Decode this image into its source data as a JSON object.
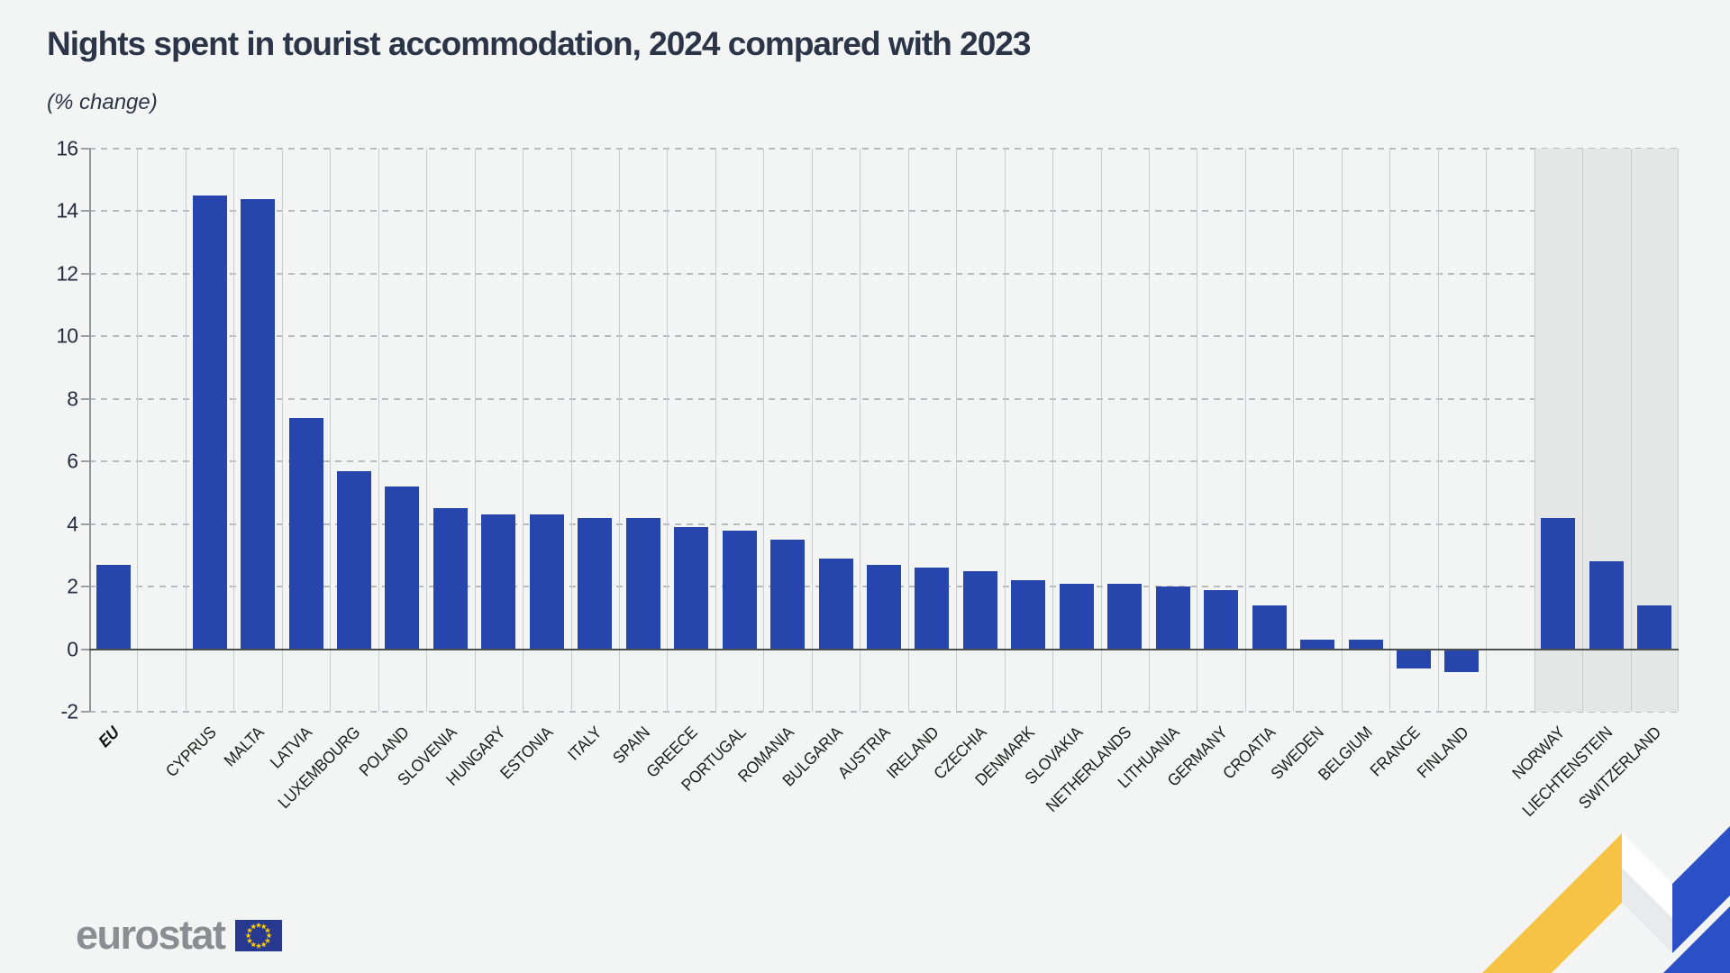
{
  "title": "Nights spent in tourist accommodation, 2024 compared with 2023",
  "subtitle": "(% change)",
  "footer": {
    "logo_text": "eurostat"
  },
  "colors": {
    "bar_blue": "#2646ad",
    "efta_band_gray": "#e5e6e6",
    "flag_blue": "#27398f",
    "star_yellow": "#ffcc00",
    "ribbon_yellow": "#f6c344",
    "ribbon_blue": "#2b50c6",
    "ribbon_white": "#ffffff"
  },
  "chart_data": {
    "type": "bar",
    "title": "Nights spent in tourist accommodation, 2024 compared with 2023",
    "unit_label": "(% change)",
    "ylim": [
      -2,
      16
    ],
    "yticks": [
      16,
      14,
      12,
      10,
      8,
      6,
      4,
      2,
      0,
      -2
    ],
    "grid": "horizontal dashed lines, solid vertical column separators, solid dark zero line",
    "legend_position": "none",
    "highlight": "EFTA countries (Norway, Liechtenstein, Switzerland) on gray background band; gap columns after EU and after Finland",
    "bars": [
      {
        "label": "EU",
        "value": 2.7,
        "bold": true,
        "gap_after": true
      },
      {
        "label": "CYPRUS",
        "value": 14.5
      },
      {
        "label": "MALTA",
        "value": 14.4
      },
      {
        "label": "LATVIA",
        "value": 7.4
      },
      {
        "label": "LUXEMBOURG",
        "value": 5.7
      },
      {
        "label": "POLAND",
        "value": 5.2
      },
      {
        "label": "SLOVENIA",
        "value": 4.5
      },
      {
        "label": "HUNGARY",
        "value": 4.3
      },
      {
        "label": "ESTONIA",
        "value": 4.3
      },
      {
        "label": "ITALY",
        "value": 4.2
      },
      {
        "label": "SPAIN",
        "value": 4.2
      },
      {
        "label": "GREECE",
        "value": 3.9
      },
      {
        "label": "PORTUGAL",
        "value": 3.8
      },
      {
        "label": "ROMANIA",
        "value": 3.5
      },
      {
        "label": "BULGARIA",
        "value": 2.9
      },
      {
        "label": "AUSTRIA",
        "value": 2.7
      },
      {
        "label": "IRELAND",
        "value": 2.6
      },
      {
        "label": "CZECHIA",
        "value": 2.5
      },
      {
        "label": "DENMARK",
        "value": 2.2
      },
      {
        "label": "SLOVAKIA",
        "value": 2.1
      },
      {
        "label": "NETHERLANDS",
        "value": 2.1
      },
      {
        "label": "LITHUANIA",
        "value": 2.0
      },
      {
        "label": "GERMANY",
        "value": 1.9
      },
      {
        "label": "CROATIA",
        "value": 1.4
      },
      {
        "label": "SWEDEN",
        "value": 0.3
      },
      {
        "label": "BELGIUM",
        "value": 0.3
      },
      {
        "label": "FRANCE",
        "value": -0.6
      },
      {
        "label": "FINLAND",
        "value": -0.7,
        "gap_after": true
      },
      {
        "label": "NORWAY",
        "value": 4.2,
        "efta": true
      },
      {
        "label": "LIECHTENSTEIN",
        "value": 2.8,
        "efta": true
      },
      {
        "label": "SWITZERLAND",
        "value": 1.4,
        "efta": true
      }
    ]
  }
}
